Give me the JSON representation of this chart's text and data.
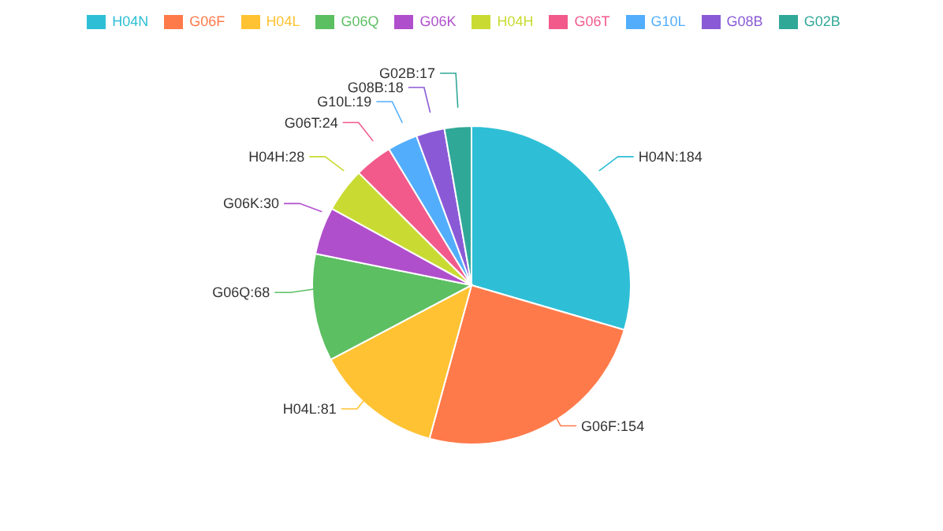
{
  "chart_data": {
    "type": "pie",
    "categories": [
      "H04N",
      "G06F",
      "H04L",
      "G06Q",
      "G06K",
      "H04H",
      "G06T",
      "G10L",
      "G08B",
      "G02B"
    ],
    "values": [
      184,
      154,
      81,
      68,
      30,
      28,
      24,
      19,
      18,
      17
    ],
    "value_labels": [
      "H04N:184",
      "G06F:154",
      "H04L:81",
      "G06Q:68",
      "G06K:30",
      "H04H:28",
      "G06T:24",
      "G10L:19",
      "G08B:18",
      "G02B:17"
    ],
    "colors": [
      "#2ebfd6",
      "#ff7a4a",
      "#ffc233",
      "#5cbf62",
      "#b04fcc",
      "#c9db33",
      "#f25a8c",
      "#52aefc",
      "#8a5ad6",
      "#30a898"
    ],
    "legend": "top"
  }
}
